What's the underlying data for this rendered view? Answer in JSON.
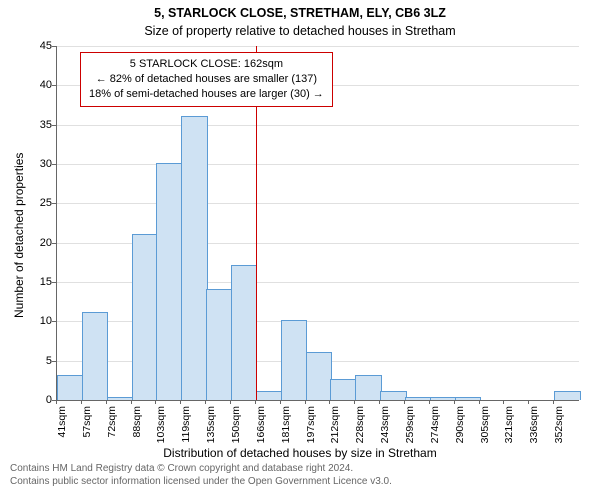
{
  "chart": {
    "type": "histogram",
    "title_main": "5, STARLOCK CLOSE, STRETHAM, ELY, CB6 3LZ",
    "title_sub": "Size of property relative to detached houses in Stretham",
    "y_label": "Number of detached properties",
    "x_label": "Distribution of detached houses by size in Stretham",
    "ylim": [
      0,
      45
    ],
    "yticks": [
      0,
      5,
      10,
      15,
      20,
      25,
      30,
      35,
      40,
      45
    ],
    "x_tick_labels": [
      "41sqm",
      "57sqm",
      "72sqm",
      "88sqm",
      "103sqm",
      "119sqm",
      "135sqm",
      "150sqm",
      "166sqm",
      "181sqm",
      "197sqm",
      "212sqm",
      "228sqm",
      "243sqm",
      "259sqm",
      "274sqm",
      "290sqm",
      "305sqm",
      "321sqm",
      "336sqm",
      "352sqm"
    ],
    "bar_values": [
      3,
      11,
      0.3,
      21,
      30,
      36,
      14,
      17,
      1,
      10,
      6,
      2.5,
      3,
      1,
      0.3,
      0.3,
      0.3,
      0,
      0,
      0,
      1
    ],
    "bar_fill": "#cfe2f3",
    "bar_stroke": "#5b9bd5",
    "grid_color": "#e0e0e0",
    "axis_color": "#666666",
    "background": "#ffffff",
    "ref_line_x_index": 8,
    "ref_line_color": "#cc0000",
    "annotation": {
      "line1": "5 STARLOCK CLOSE: 162sqm",
      "line2": "← 82% of detached houses are smaller (137)",
      "line3": "18% of semi-detached houses are larger (30) →",
      "border_color": "#cc0000"
    },
    "title_fontsize": 12.5,
    "label_fontsize": 12,
    "tick_fontsize": 11
  },
  "footer": {
    "line1": "Contains HM Land Registry data © Crown copyright and database right 2024.",
    "line2": "Contains public sector information licensed under the Open Government Licence v3.0."
  }
}
